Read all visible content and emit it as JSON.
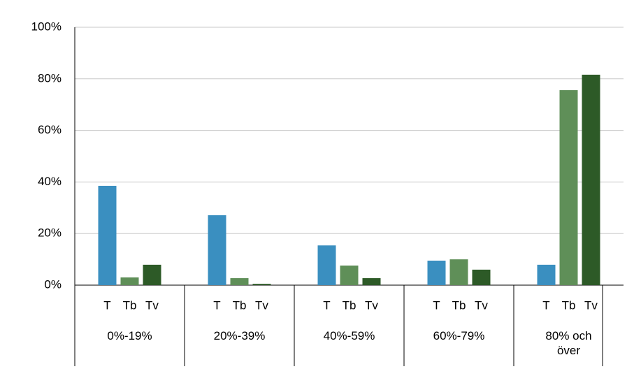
{
  "chart_data": {
    "type": "bar",
    "categories": [
      "0%-19%",
      "20%-39%",
      "40%-59%",
      "60%-79%",
      "80% och över"
    ],
    "series": [
      {
        "name": "T",
        "color": "#3a8fc0",
        "values": [
          38.5,
          27.1,
          15.4,
          9.5,
          7.9
        ]
      },
      {
        "name": "Tb",
        "color": "#5f8f58",
        "values": [
          3.0,
          2.7,
          7.6,
          10.0,
          75.6
        ]
      },
      {
        "name": "Tv",
        "color": "#2d5a27",
        "values": [
          7.9,
          0.5,
          2.7,
          6.0,
          81.6
        ]
      }
    ],
    "ylim": [
      0,
      100
    ],
    "yticks": [
      {
        "value": 0,
        "label": "0%"
      },
      {
        "value": 20,
        "label": "20%"
      },
      {
        "value": 40,
        "label": "40%"
      },
      {
        "value": 60,
        "label": "60%"
      },
      {
        "value": 80,
        "label": "80%"
      },
      {
        "value": 100,
        "label": "100%"
      }
    ],
    "grid": true
  }
}
